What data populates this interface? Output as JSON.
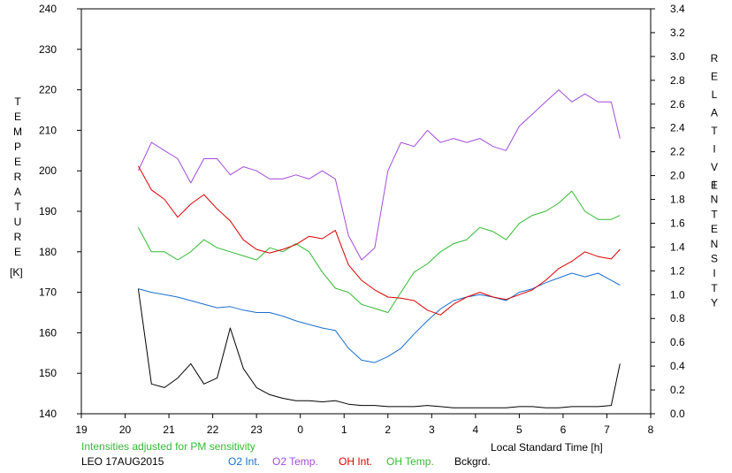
{
  "chart_data": {
    "type": "line",
    "left_axis_title": "TEMPERATURE",
    "left_axis_unit": "[K]",
    "right_axis_title_1": "RELATIVE",
    "right_axis_title_2": "INTENSITY",
    "xlabel": "Local Standard Time [h]",
    "note": "Intensities adjusted for PM sensitivity",
    "station_date": "LEO 17AUG2015",
    "xlim": [
      19,
      8
    ],
    "ylim_left": [
      140,
      240
    ],
    "ylim_right": [
      0.0,
      3.4
    ],
    "x_ticks": [
      "19",
      "20",
      "21",
      "22",
      "23",
      "0",
      "1",
      "2",
      "3",
      "4",
      "5",
      "6",
      "7",
      "8"
    ],
    "left_ticks": [
      "240",
      "230",
      "220",
      "210",
      "200",
      "190",
      "180",
      "170",
      "160",
      "150",
      "140"
    ],
    "right_ticks": [
      "3.4",
      "3.2",
      "3.0",
      "2.8",
      "2.6",
      "2.4",
      "2.2",
      "2.0",
      "1.8",
      "1.6",
      "1.4",
      "1.2",
      "1.0",
      "0.8",
      "0.6",
      "0.4",
      "0.2",
      "0.0"
    ],
    "grid": false,
    "x_hours": [
      20.3,
      20.6,
      20.9,
      21.2,
      21.5,
      21.8,
      22.1,
      22.4,
      22.7,
      23.0,
      23.3,
      23.6,
      23.9,
      24.2,
      24.5,
      24.8,
      25.1,
      25.4,
      25.7,
      26.0,
      26.3,
      26.6,
      26.9,
      27.2,
      27.5,
      27.8,
      28.1,
      28.4,
      28.7,
      29.0,
      29.3,
      29.6,
      29.9,
      30.2,
      30.5,
      30.8,
      31.1,
      31.3
    ],
    "series": [
      {
        "name": "O2 Int.",
        "color": "#1a6fd0",
        "axis": "right",
        "values": [
          1.05,
          1.02,
          1.0,
          0.98,
          0.95,
          0.92,
          0.89,
          0.9,
          0.87,
          0.85,
          0.85,
          0.82,
          0.78,
          0.75,
          0.72,
          0.7,
          0.55,
          0.45,
          0.43,
          0.48,
          0.55,
          0.67,
          0.78,
          0.88,
          0.95,
          0.98,
          1.0,
          0.98,
          0.95,
          1.02,
          1.05,
          1.1,
          1.14,
          1.18,
          1.15,
          1.18,
          1.12,
          1.08
        ]
      },
      {
        "name": "O2 Temp.",
        "color": "#a44cdc",
        "axis": "left",
        "values": [
          200,
          207,
          205,
          203,
          197,
          203,
          203,
          199,
          201,
          200,
          198,
          198,
          199,
          198,
          200,
          198,
          184,
          178,
          181,
          200,
          207,
          206,
          210,
          207,
          208,
          207,
          208,
          206,
          205,
          211,
          214,
          217,
          220,
          217,
          219,
          217,
          217,
          208
        ]
      },
      {
        "name": "OH Int.",
        "color": "#dd0000",
        "axis": "right",
        "values": [
          2.08,
          1.88,
          1.8,
          1.65,
          1.76,
          1.84,
          1.72,
          1.62,
          1.46,
          1.38,
          1.35,
          1.38,
          1.42,
          1.49,
          1.47,
          1.54,
          1.25,
          1.12,
          1.04,
          0.98,
          0.97,
          0.95,
          0.87,
          0.83,
          0.92,
          0.98,
          1.02,
          0.98,
          0.96,
          1.0,
          1.04,
          1.12,
          1.22,
          1.28,
          1.36,
          1.32,
          1.3,
          1.38
        ]
      },
      {
        "name": "OH Temp.",
        "color": "#33bb33",
        "axis": "left",
        "values": [
          186,
          180,
          180,
          178,
          180,
          183,
          181,
          180,
          179,
          178,
          181,
          180,
          182,
          180,
          175,
          171,
          170,
          167,
          166,
          165,
          170,
          175,
          177,
          180,
          182,
          183,
          186,
          185,
          183,
          187,
          189,
          190,
          192,
          195,
          190,
          188,
          188,
          189
        ]
      },
      {
        "name": "Bckgrd.",
        "color": "#000000",
        "axis": "right",
        "values": [
          1.05,
          0.25,
          0.22,
          0.3,
          0.42,
          0.25,
          0.3,
          0.72,
          0.38,
          0.22,
          0.16,
          0.13,
          0.11,
          0.11,
          0.1,
          0.11,
          0.08,
          0.07,
          0.07,
          0.06,
          0.06,
          0.06,
          0.07,
          0.06,
          0.05,
          0.05,
          0.05,
          0.05,
          0.05,
          0.06,
          0.06,
          0.05,
          0.05,
          0.06,
          0.06,
          0.06,
          0.07,
          0.42
        ]
      }
    ]
  }
}
